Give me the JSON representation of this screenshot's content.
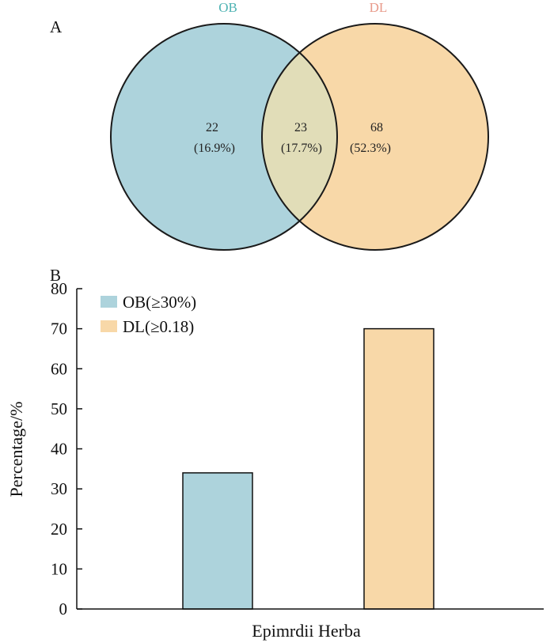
{
  "chart_data": [
    {
      "type": "venn",
      "panel_label": "A",
      "sets": [
        {
          "name": "OB",
          "color": "#add3dc",
          "label_color": "#4fb3b3"
        },
        {
          "name": "DL",
          "color": "#f8d8a8",
          "label_color": "#e89a8a"
        }
      ],
      "overlap_color": "#e1ddb8",
      "regions": [
        {
          "set": "OB only",
          "count": "22",
          "percent": "(16.9%)"
        },
        {
          "set": "OB∩DL",
          "count": "23",
          "percent": "(17.7%)"
        },
        {
          "set": "DL only",
          "count": "68",
          "percent": "(52.3%)"
        }
      ]
    },
    {
      "type": "bar",
      "panel_label": "B",
      "categories": [
        "Epimrdii Herba"
      ],
      "xlabel": "Epimrdii Herba",
      "ylabel": "Percentage/%",
      "ylim": [
        0,
        80
      ],
      "yticks": [
        0,
        10,
        20,
        30,
        40,
        50,
        60,
        70,
        80
      ],
      "legend_position": "top-left",
      "series": [
        {
          "name": "OB(≥30%)",
          "values": [
            34
          ],
          "color": "#add3dc"
        },
        {
          "name": "DL(≥0.18)",
          "values": [
            70
          ],
          "color": "#f8d8a8"
        }
      ]
    }
  ]
}
